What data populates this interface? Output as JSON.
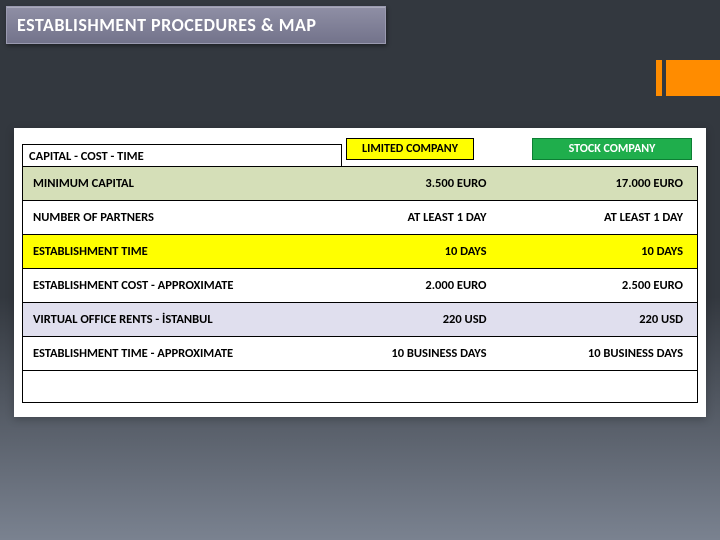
{
  "title": "ESTABLISHMENT PROCEDURES & MAP",
  "colors": {
    "title_bg_top": "#8f8fa5",
    "title_bg_bottom": "#73738b",
    "accent": "#ff8c00",
    "bg_top": "#33383f",
    "bg_bottom": "#7a8290",
    "badge_yellow": "#ffff00",
    "badge_green": "#1fae4c",
    "row_olive": "#d5dfb8",
    "row_yellow": "#ffff00",
    "row_lavender": "#e0dfee"
  },
  "table": {
    "heading": "CAPITAL - COST - TIME",
    "columns": {
      "c1": "LIMITED COMPANY",
      "c2": "STOCK COMPANY"
    },
    "rows": [
      {
        "style": "row-olive",
        "label": "MINIMUM CAPITAL",
        "v1": "3.500 EURO",
        "v2": "17.000 EURO"
      },
      {
        "style": "row-white",
        "label": "NUMBER OF PARTNERS",
        "v1": "AT LEAST 1 DAY",
        "v2": "AT LEAST 1 DAY"
      },
      {
        "style": "row-yellow",
        "label": "ESTABLISHMENT TIME",
        "v1": "10 DAYS",
        "v2": "10 DAYS"
      },
      {
        "style": "row-white",
        "label": "ESTABLISHMENT COST - APPROXIMATE",
        "v1": "2.000 EURO",
        "v2": "2.500 EURO"
      },
      {
        "style": "row-lav",
        "label": "VIRTUAL OFFICE RENTS - İSTANBUL",
        "v1": "220 USD",
        "v2": "220 USD"
      },
      {
        "style": "row-white",
        "label": "ESTABLISHMENT TIME - APPROXIMATE",
        "v1": "10 BUSINESS DAYS",
        "v2": "10 BUSINESS DAYS"
      }
    ]
  }
}
